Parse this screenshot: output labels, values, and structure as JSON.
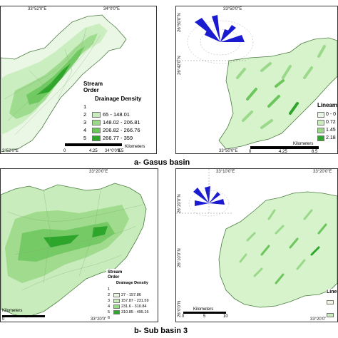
{
  "colors": {
    "c1": "#e9f7e4",
    "c2": "#c8ecbb",
    "c3": "#9bd98a",
    "c4": "#6cc65c",
    "c5": "#2ea52b",
    "frame": "#333333",
    "rose": "#1a1ad0"
  },
  "captions": {
    "a": "a- Gasus basin",
    "b": "b- Sub basin 3"
  },
  "panel_a_left": {
    "coords": {
      "top1": "33°52'0\"E",
      "top2": "34°0'0\"E",
      "bottom1": "3°52'0\"E",
      "bottom2": "34°0'0\"E",
      "right1": "26°44'0\"N"
    },
    "legend": {
      "title1": "Stream",
      "title2": "Order",
      "density_title": "Drainage Density",
      "orders": [
        "1",
        "2",
        "3",
        "4",
        "5"
      ],
      "ranges": [
        "65 - 148.01",
        "148.02 - 206.81",
        "206.82 - 266.76",
        "266.77 - 359"
      ]
    },
    "scale": {
      "ticks": [
        "0",
        "4.25",
        "8.5"
      ],
      "unit": "Kilometers"
    }
  },
  "panel_a_right": {
    "coords": {
      "top1": "33°50'0\"E",
      "bottom1": "33°50'0\"E",
      "left1": "26°50'0\"N",
      "left2": "26°42'0\"N"
    },
    "legend": {
      "title": "Lineam",
      "items": [
        "0 - 0",
        "0.72",
        "1.45",
        "2.18"
      ]
    },
    "scale": {
      "ticks": [
        "0",
        "4.25",
        "8.5"
      ],
      "unit": "Kilometers"
    }
  },
  "panel_b_left": {
    "coords": {
      "top1": "33°20'0\"E",
      "bottom1": "33°20'0\"E"
    },
    "legend": {
      "title1": "Stream",
      "title2": "Order",
      "density_title": "Drainage Density",
      "orders": [
        "1",
        "2",
        "3",
        "4",
        "5",
        "6"
      ],
      "ranges": [
        "27 - 157.86",
        "157.87 - 231.59",
        "231.6 - 310.84",
        "310.85 - 495.16"
      ]
    },
    "scale": {
      "ticks": [
        "0"
      ],
      "unit": "Kilometers"
    }
  },
  "panel_b_right": {
    "coords": {
      "top1": "33°10'0\"E",
      "top2": "33°20'0\"E",
      "bottom1": "33°20'0\"E",
      "left1": "26°20'0\"N",
      "left2": "26°10'0\"N",
      "left3": "26°0'0\"N"
    },
    "legend": {
      "title": "Line"
    },
    "scale": {
      "ticks": [
        "0",
        "5",
        "10"
      ],
      "unit": "Kilometers"
    }
  }
}
